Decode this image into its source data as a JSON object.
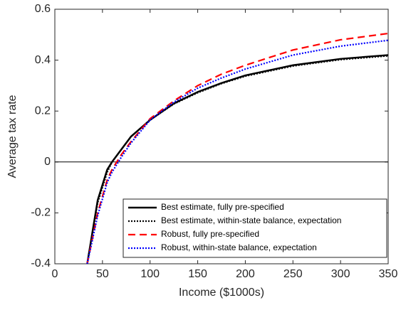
{
  "chart_data": {
    "type": "line",
    "x_label": "Income ($1000s)",
    "y_label": "Average tax rate",
    "x": [
      34,
      45,
      55,
      60,
      70,
      80,
      100,
      125,
      150,
      175,
      200,
      250,
      300,
      350
    ],
    "series": [
      {
        "name": "Best estimate, fully pre-specified",
        "color": "#000000",
        "dash": "solid",
        "values": [
          -0.4,
          -0.15,
          -0.03,
          0.0,
          0.05,
          0.1,
          0.165,
          0.23,
          0.275,
          0.31,
          0.34,
          0.38,
          0.405,
          0.42
        ]
      },
      {
        "name": "Best estimate, within-state balance, expectation",
        "color": "#000000",
        "dash": "dotted",
        "values": [
          -0.4,
          -0.16,
          -0.04,
          0.0,
          0.05,
          0.1,
          0.165,
          0.228,
          0.272,
          0.308,
          0.337,
          0.377,
          0.402,
          0.417
        ]
      },
      {
        "name": "Robust, fully pre-specified",
        "color": "#ff0000",
        "dash": "dashed",
        "values": [
          -0.4,
          -0.2,
          -0.07,
          -0.03,
          0.03,
          0.08,
          0.17,
          0.24,
          0.3,
          0.345,
          0.38,
          0.44,
          0.48,
          0.505
        ]
      },
      {
        "name": "Robust, within-state balance, expectation",
        "color": "#0000ff",
        "dash": "dotted",
        "values": [
          -0.4,
          -0.21,
          -0.08,
          -0.04,
          0.02,
          0.075,
          0.165,
          0.235,
          0.29,
          0.33,
          0.365,
          0.42,
          0.455,
          0.478
        ]
      }
    ],
    "xlim": [
      0,
      350
    ],
    "ylim": [
      -0.4,
      0.6
    ],
    "xticks": [
      0,
      50,
      100,
      150,
      200,
      250,
      300,
      350
    ],
    "yticks": [
      -0.4,
      -0.2,
      0,
      0.2,
      0.4,
      0.6
    ],
    "legend": "lower right"
  }
}
